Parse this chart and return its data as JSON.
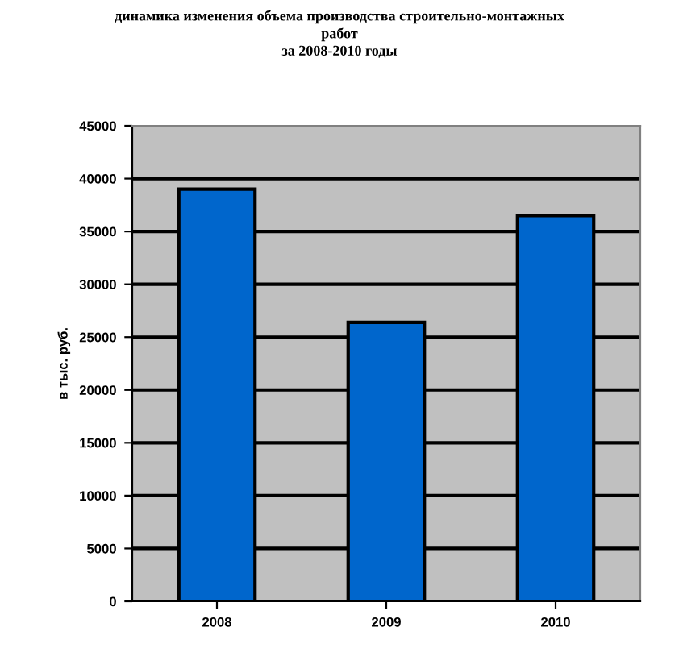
{
  "chart_data": {
    "type": "bar",
    "title": "динамика изменения объема производства строительно-монтажных\nработ\nза 2008-2010 годы",
    "ylabel": "в тыс. руб.",
    "categories": [
      "2008",
      "2009",
      "2010"
    ],
    "values": [
      39000,
      26400,
      36500
    ],
    "color": "#0066cc",
    "ylim": [
      0,
      45000
    ],
    "yticks": [
      0,
      5000,
      10000,
      15000,
      20000,
      25000,
      30000,
      35000,
      40000,
      45000
    ],
    "grid": "y"
  }
}
